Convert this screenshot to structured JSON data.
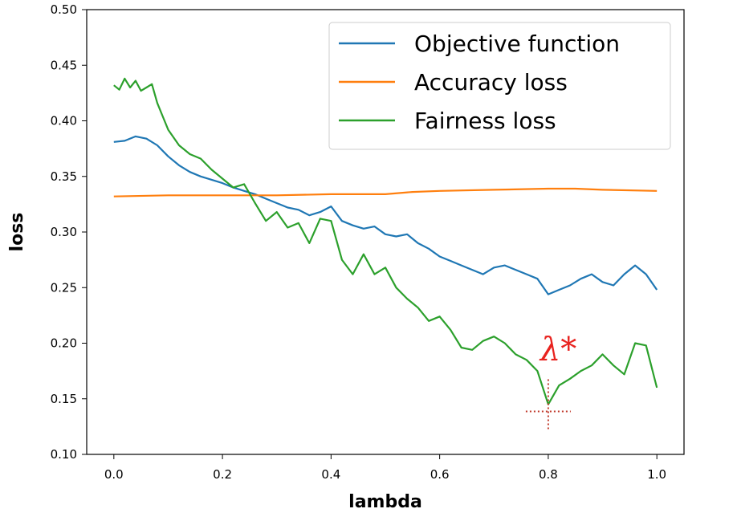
{
  "chart_data": {
    "type": "line",
    "title": "",
    "xlabel": "lambda",
    "ylabel": "loss",
    "xlim": [
      -0.05,
      1.05
    ],
    "ylim": [
      0.1,
      0.5
    ],
    "xticks": [
      0.0,
      0.2,
      0.4,
      0.6,
      0.8,
      1.0
    ],
    "xtick_labels": [
      "0.0",
      "0.2",
      "0.4",
      "0.6",
      "0.8",
      "1.0"
    ],
    "yticks": [
      0.1,
      0.15,
      0.2,
      0.25,
      0.3,
      0.35,
      0.4,
      0.45,
      0.5
    ],
    "ytick_labels": [
      "0.10",
      "0.15",
      "0.20",
      "0.25",
      "0.30",
      "0.35",
      "0.40",
      "0.45",
      "0.50"
    ],
    "grid": false,
    "legend_position": "top-right",
    "series": [
      {
        "name": "Objective function",
        "color": "#1f77b4",
        "x": [
          0.0,
          0.02,
          0.04,
          0.06,
          0.08,
          0.1,
          0.12,
          0.14,
          0.16,
          0.18,
          0.2,
          0.22,
          0.24,
          0.26,
          0.28,
          0.3,
          0.32,
          0.34,
          0.36,
          0.38,
          0.4,
          0.42,
          0.44,
          0.46,
          0.48,
          0.5,
          0.52,
          0.54,
          0.56,
          0.58,
          0.6,
          0.62,
          0.64,
          0.66,
          0.68,
          0.7,
          0.72,
          0.74,
          0.76,
          0.78,
          0.8,
          0.82,
          0.84,
          0.86,
          0.88,
          0.9,
          0.92,
          0.94,
          0.96,
          0.98,
          1.0
        ],
        "y": [
          0.381,
          0.382,
          0.386,
          0.384,
          0.378,
          0.368,
          0.36,
          0.354,
          0.35,
          0.347,
          0.344,
          0.34,
          0.337,
          0.334,
          0.33,
          0.326,
          0.322,
          0.32,
          0.315,
          0.318,
          0.323,
          0.31,
          0.306,
          0.303,
          0.305,
          0.298,
          0.296,
          0.298,
          0.29,
          0.285,
          0.278,
          0.274,
          0.27,
          0.266,
          0.262,
          0.268,
          0.27,
          0.266,
          0.262,
          0.258,
          0.244,
          0.248,
          0.252,
          0.258,
          0.262,
          0.255,
          0.252,
          0.262,
          0.27,
          0.262,
          0.248
        ]
      },
      {
        "name": "Accuracy loss",
        "color": "#ff7f0e",
        "x": [
          0.0,
          0.1,
          0.2,
          0.3,
          0.4,
          0.5,
          0.55,
          0.6,
          0.7,
          0.8,
          0.85,
          0.9,
          1.0
        ],
        "y": [
          0.332,
          0.333,
          0.333,
          0.333,
          0.334,
          0.334,
          0.336,
          0.337,
          0.338,
          0.339,
          0.339,
          0.338,
          0.337
        ]
      },
      {
        "name": "Fairness loss",
        "color": "#2ca02c",
        "x": [
          0.0,
          0.01,
          0.02,
          0.03,
          0.04,
          0.05,
          0.06,
          0.07,
          0.08,
          0.09,
          0.1,
          0.12,
          0.14,
          0.16,
          0.18,
          0.2,
          0.22,
          0.24,
          0.26,
          0.28,
          0.3,
          0.32,
          0.34,
          0.36,
          0.38,
          0.4,
          0.42,
          0.44,
          0.46,
          0.48,
          0.5,
          0.52,
          0.54,
          0.56,
          0.58,
          0.6,
          0.62,
          0.64,
          0.66,
          0.68,
          0.7,
          0.72,
          0.74,
          0.76,
          0.78,
          0.8,
          0.82,
          0.84,
          0.86,
          0.88,
          0.9,
          0.92,
          0.94,
          0.96,
          0.98,
          1.0
        ],
        "y": [
          0.432,
          0.428,
          0.438,
          0.43,
          0.436,
          0.427,
          0.43,
          0.433,
          0.416,
          0.404,
          0.392,
          0.378,
          0.37,
          0.366,
          0.356,
          0.348,
          0.34,
          0.343,
          0.326,
          0.31,
          0.318,
          0.304,
          0.308,
          0.29,
          0.312,
          0.31,
          0.275,
          0.262,
          0.28,
          0.262,
          0.268,
          0.25,
          0.24,
          0.232,
          0.22,
          0.224,
          0.212,
          0.196,
          0.194,
          0.202,
          0.206,
          0.2,
          0.19,
          0.185,
          0.175,
          0.145,
          0.162,
          0.168,
          0.175,
          0.18,
          0.19,
          0.18,
          0.172,
          0.2,
          0.198,
          0.16
        ]
      }
    ],
    "annotations": [
      {
        "text": "λ*",
        "x": 0.8,
        "y": 0.143,
        "color": "#e8231f"
      }
    ]
  }
}
